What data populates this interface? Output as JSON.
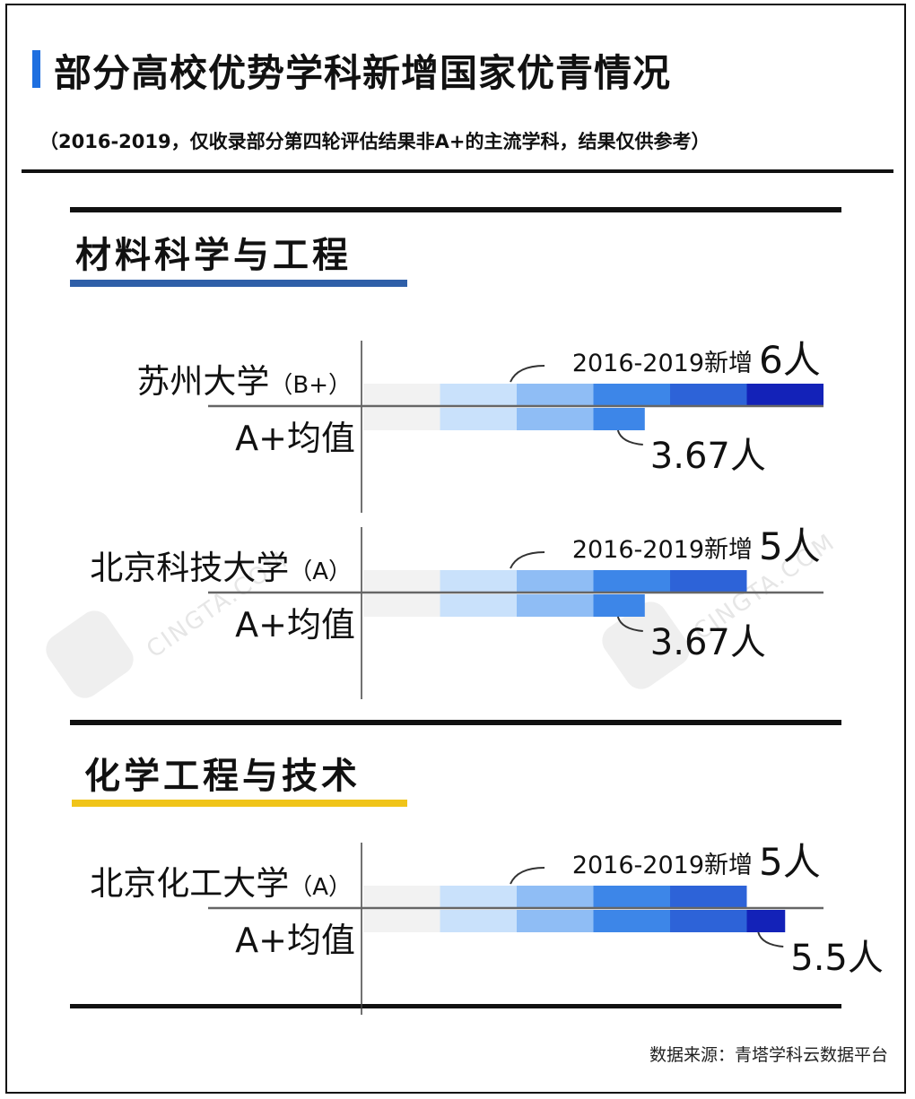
{
  "header": {
    "title": "部分高校优势学科新增国家优青情况",
    "subtitle": "（2016-2019，仅收录部分第四轮评估结果非A+的主流学科，结果仅供参考）"
  },
  "sections": [
    {
      "title": "材料科学与工程",
      "underline_color": "#2f5fa8"
    },
    {
      "title": "化学工程与技术",
      "underline_color": "#f0c419"
    }
  ],
  "chart_data": [
    {
      "type": "bar",
      "section": "材料科学与工程",
      "university": "苏州大学",
      "grade": "（B+）",
      "new_label": "2016-2019新增",
      "new_value": 6,
      "new_value_text": "6人",
      "avg_label": "A+均值",
      "avg_value": 3.67,
      "avg_value_text": "3.67人"
    },
    {
      "type": "bar",
      "section": "材料科学与工程",
      "university": "北京科技大学",
      "grade": "（A）",
      "new_label": "2016-2019新增",
      "new_value": 5,
      "new_value_text": "5人",
      "avg_label": "A+均值",
      "avg_value": 3.67,
      "avg_value_text": "3.67人"
    },
    {
      "type": "bar",
      "section": "化学工程与技术",
      "university": "北京化工大学",
      "grade": "（A）",
      "new_label": "2016-2019新增",
      "new_value": 5,
      "new_value_text": "5人",
      "avg_label": "A+均值",
      "avg_value": 5.5,
      "avg_value_text": "5.5人"
    }
  ],
  "segment_colors": [
    "#f2f2f2",
    "#c9e1fb",
    "#8fbdf5",
    "#3d86e8",
    "#2d63d8",
    "#1322b8"
  ],
  "watermark": {
    "brand": "青塔",
    "url": "CINGTA.COM"
  },
  "source": "数据来源：青塔学科云数据平台"
}
